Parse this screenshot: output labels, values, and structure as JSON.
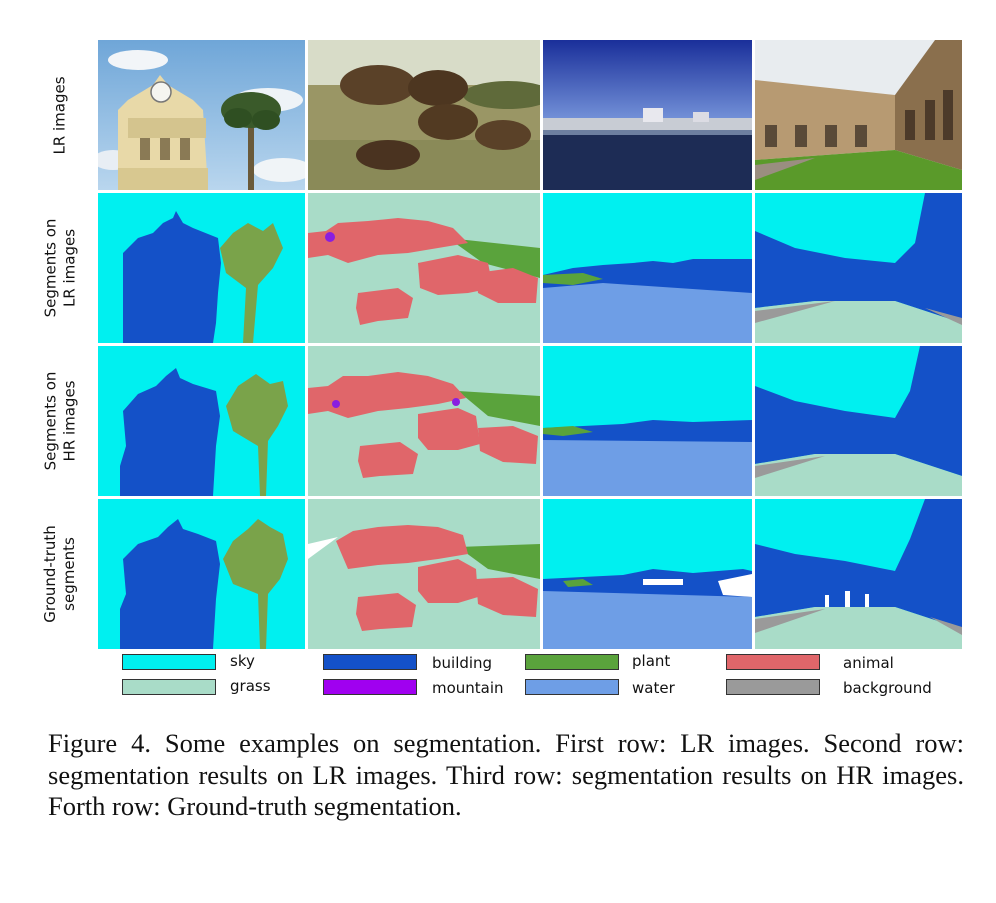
{
  "rows": [
    {
      "id": "lr",
      "label_lines": [
        "LR images"
      ]
    },
    {
      "id": "seg_lr",
      "label_lines": [
        "Segments on",
        "LR images"
      ]
    },
    {
      "id": "seg_hr",
      "label_lines": [
        "Segments on",
        "HR images"
      ]
    },
    {
      "id": "gt",
      "label_lines": [
        "Ground-truth",
        "segments"
      ]
    }
  ],
  "legend": [
    {
      "name": "sky",
      "color": "#00f0f0"
    },
    {
      "name": "building",
      "color": "#1451c8"
    },
    {
      "name": "plant",
      "color": "#5aa33c"
    },
    {
      "name": "animal",
      "color": "#e0666a"
    },
    {
      "name": "grass",
      "color": "#a9dcc8"
    },
    {
      "name": "mountain",
      "color": "#a000f0"
    },
    {
      "name": "water",
      "color": "#6e9ee6"
    },
    {
      "name": "background",
      "color": "#9a9a9a"
    }
  ],
  "caption": "Figure 4. Some examples on segmentation.  First row: LR images. Second row: segmentation results on LR images. Third row: segmentation results on HR images. Forth row: Ground-truth segmentation."
}
